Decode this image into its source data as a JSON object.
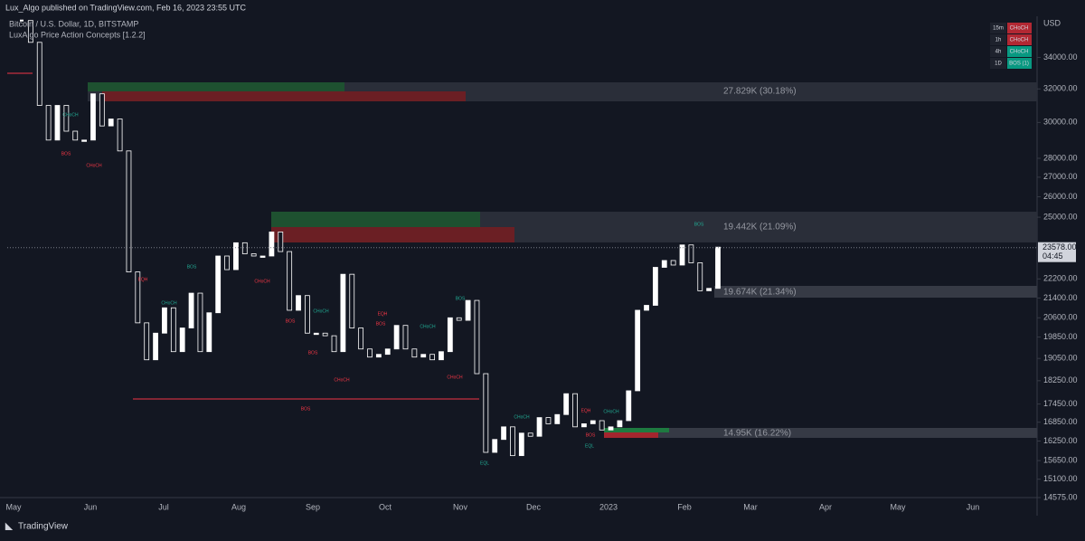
{
  "header": {
    "publisher": "Lux_Algo published on TradingView.com, Feb 16, 2023 23:55 UTC",
    "brand": "TradingView"
  },
  "chart_data": {
    "type": "candlestick",
    "title": "Bitcoin / U.S. Dollar, 1D, BITSTAMP",
    "indicator": "LuxAlgo Price Action Concepts [1.2.2]",
    "y_label": "USD",
    "log_scale": true,
    "color": "#ffffff",
    "month_labels": [
      "May",
      "Jun",
      "Jul",
      "Aug",
      "Sep",
      "Oct",
      "Nov",
      "Dec",
      "2023",
      "Feb",
      "Mar",
      "Apr",
      "May",
      "Jun"
    ],
    "values": [
      36500,
      35000,
      31000,
      29000,
      31000,
      29500,
      29000,
      29000,
      31700,
      29800,
      30200,
      28400,
      22500,
      20400,
      19000,
      20000,
      21000,
      19300,
      20200,
      21600,
      19300,
      20800,
      23200,
      22600,
      23800,
      23300,
      23200,
      23200,
      24300,
      23400,
      20900,
      21500,
      20000,
      20000,
      19900,
      19300,
      22400,
      20200,
      19400,
      19100,
      19200,
      19400,
      20300,
      19400,
      19100,
      19200,
      19000,
      19300,
      20600,
      20500,
      21300,
      18500,
      15900,
      16300,
      16700,
      15800,
      16500,
      16400,
      17000,
      16800,
      17100,
      17800,
      16700,
      16800,
      16900,
      16600,
      16700,
      16900,
      17900,
      20900,
      21100,
      22700,
      23000,
      22800,
      23700,
      22900,
      21700,
      21800,
      23600
    ],
    "ylim": [
      14575,
      36800
    ],
    "yticks": [
      {
        "value": 14575,
        "label": "14575.00"
      },
      {
        "value": 15100,
        "label": "15100.00"
      },
      {
        "value": 15650,
        "label": "15650.00"
      },
      {
        "value": 16250,
        "label": "16250.00"
      },
      {
        "value": 16850,
        "label": "16850.00"
      },
      {
        "value": 17450,
        "label": "17450.00"
      },
      {
        "value": 18250,
        "label": "18250.00"
      },
      {
        "value": 19050,
        "label": "19050.00"
      },
      {
        "value": 19850,
        "label": "19850.00"
      },
      {
        "value": 20600,
        "label": "20600.00"
      },
      {
        "value": 21400,
        "label": "21400.00"
      },
      {
        "value": 22200,
        "label": "22200.00"
      },
      {
        "value": 25000,
        "label": "25000.00"
      },
      {
        "value": 26000,
        "label": "26000.00"
      },
      {
        "value": 27000,
        "label": "27000.00"
      },
      {
        "value": 28000,
        "label": "28000.00"
      },
      {
        "value": 30000,
        "label": "30000.00"
      },
      {
        "value": 32000,
        "label": "32000.00"
      },
      {
        "value": 34000,
        "label": "34000.00"
      }
    ],
    "last_price": {
      "value": 23578,
      "label": "23578.00"
    },
    "countdown": "04:45",
    "zone_labels": [
      "27.829K (30.18%)",
      "19.442K (21.09%)",
      "19.674K (21.34%)",
      "14.95K (16.22%)"
    ],
    "structure_labels": [
      "CHoCH",
      "BOS",
      "CHoCH",
      "BOS",
      "EQH",
      "BOS",
      "CHoCH",
      "CHoCH",
      "BOS",
      "CHoCH",
      "BOS",
      "EQH",
      "CHoCH",
      "CHoCH",
      "BOS",
      "CHoCH",
      "BOS",
      "CHoCH",
      "EQH",
      "BOS",
      "CHoCH",
      "EQL",
      "EQL",
      "BOS"
    ],
    "mtf_table": [
      [
        "15m",
        "CHoCH"
      ],
      [
        "1h",
        "CHoCH"
      ],
      [
        "4h",
        "CHoCH"
      ],
      [
        "1D",
        "BOS (1)"
      ]
    ]
  }
}
